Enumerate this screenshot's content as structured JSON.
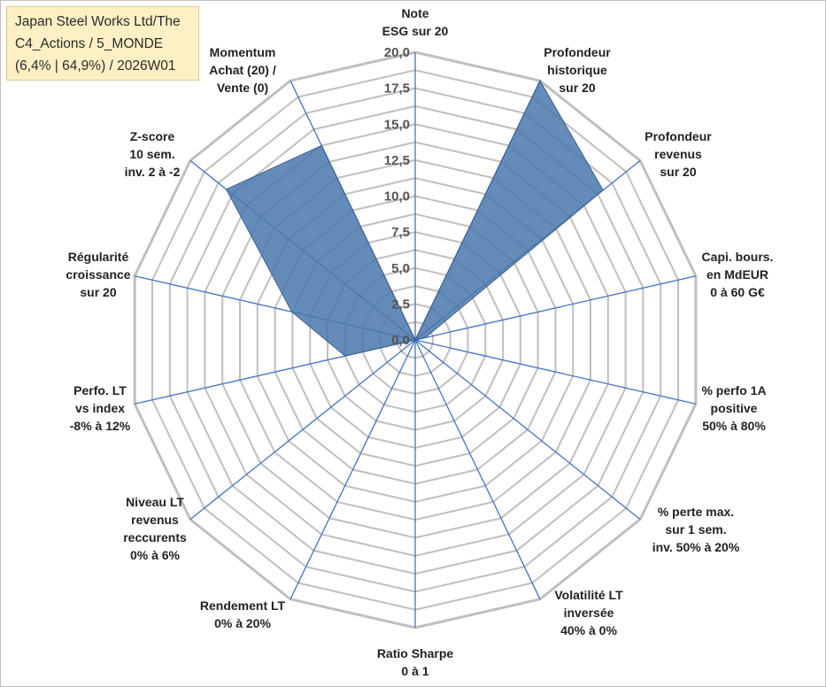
{
  "title": {
    "lines": [
      "Japan Steel Works Ltd/The",
      "C4_Actions / 5_MONDE",
      "(6,4% | 64,9%) / 2026W01"
    ]
  },
  "chart_data": {
    "type": "radar",
    "r_range": [
      0,
      20
    ],
    "tick_values": [
      0,
      2.5,
      5,
      7.5,
      10,
      12.5,
      15,
      17.5,
      20
    ],
    "tick_labels": [
      "0,0",
      "2,5",
      "5,0",
      "7,5",
      "10,0",
      "12,5",
      "15,0",
      "17,5",
      "20,0"
    ],
    "grid_rings": 16,
    "fill_color": "#4a78ad",
    "grid_color": "#bfbfbf",
    "spoke_color": "#4472c4",
    "axes": [
      {
        "label": [
          "Note",
          "ESG sur 20"
        ],
        "value": 0
      },
      {
        "label": [
          "Profondeur",
          "historique",
          "sur 20"
        ],
        "value": 20
      },
      {
        "label": [
          "Profondeur",
          "revenus",
          "sur 20"
        ],
        "value": 16.7
      },
      {
        "label": [
          "Capi. bours.",
          "en MdEUR",
          "0 à 60 G€"
        ],
        "value": 0.7
      },
      {
        "label": [
          "% perfo 1A",
          "positive",
          "50% à 80%"
        ],
        "value": 0
      },
      {
        "label": [
          "% perte max.",
          "sur 1 sem.",
          "inv. 50% à 20%"
        ],
        "value": 0
      },
      {
        "label": [
          "Volatilité LT",
          "inversée",
          "40% à 0%"
        ],
        "value": 0
      },
      {
        "label": [
          "Ratio Sharpe",
          "0 à 1"
        ],
        "value": 0
      },
      {
        "label": [
          "Rendement LT",
          "0% à 20%"
        ],
        "value": 0
      },
      {
        "label": [
          "Niveau LT",
          "revenus",
          "reccurents",
          "0% à 6%"
        ],
        "value": 0
      },
      {
        "label": [
          "Perfo. LT",
          "vs index",
          "-8% à 12%"
        ],
        "value": 5
      },
      {
        "label": [
          "Régularité",
          "croissance",
          "sur 20"
        ],
        "value": 8.8
      },
      {
        "label": [
          "Z-score",
          "10 sem.",
          "inv. 2 à -2"
        ],
        "value": 16.8
      },
      {
        "label": [
          "Momentum",
          "Achat (20) /",
          "Vente (0)"
        ],
        "value": 15
      }
    ]
  }
}
